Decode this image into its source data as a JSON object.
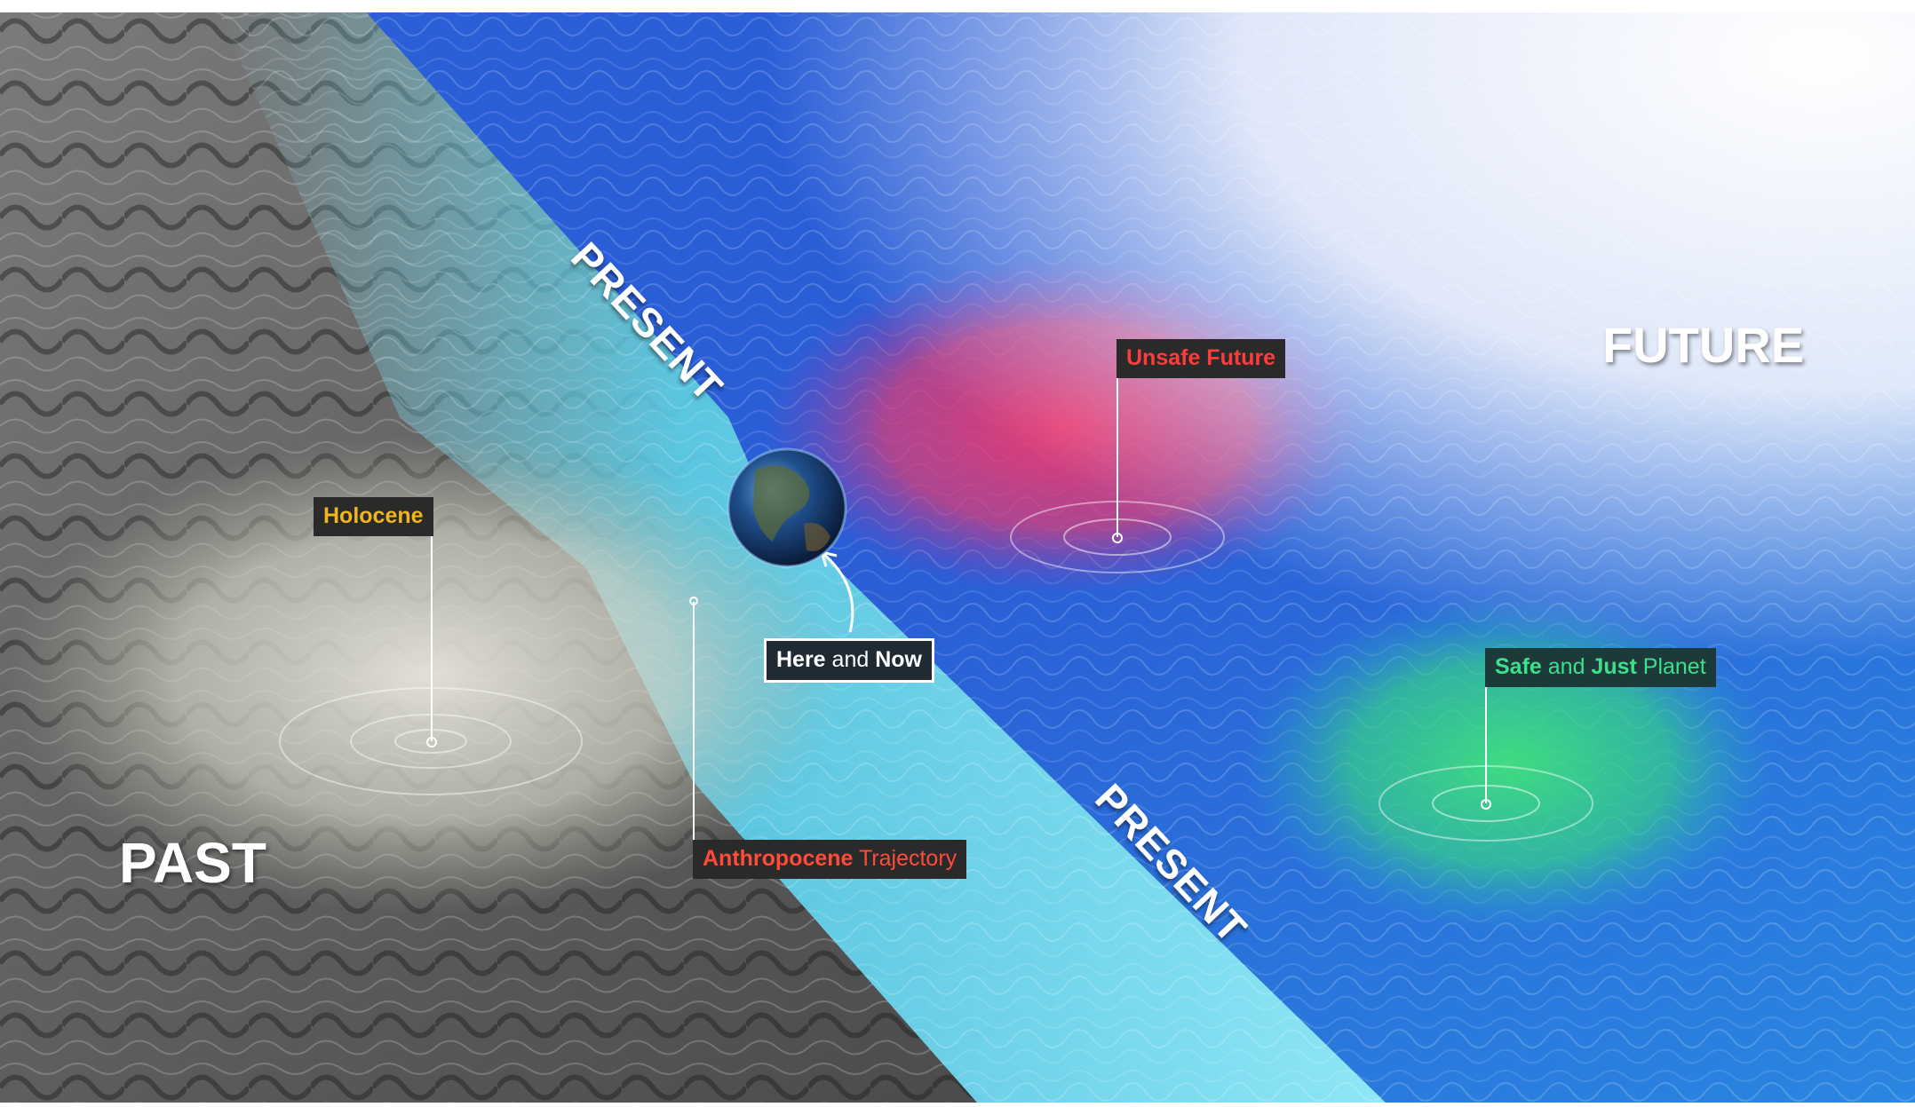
{
  "labels": {
    "past": "PAST",
    "future": "FUTURE",
    "present_top": "PRESENT",
    "present_bottom": "PRESENT",
    "holocene": "Holocene",
    "unsafe_future": "Unsafe Future",
    "safe_just_planet": {
      "part1": "Safe",
      "part2": " and ",
      "part3": "Just",
      "part4": " Planet"
    },
    "here_and_now": {
      "part1": "Here",
      "part2": " and ",
      "part3": "Now"
    },
    "anthropocene": {
      "part1": "Anthropocene",
      "part2": " Trajectory"
    }
  },
  "colors": {
    "holocene_text": "#f2b51c",
    "unsafe_text": "#ff3b3b",
    "safe_text": "#3de08a",
    "anthropocene_text": "#ff4b3a",
    "label_bg": "#2a2a2a",
    "past_surface": "#5a5a5a",
    "future_surface": "#2352c8",
    "present_band": "#6fd8f0",
    "unsafe_glow": "#e33a6b",
    "safe_glow": "#3ee07a"
  },
  "icons": [
    "earth-globe-icon"
  ]
}
